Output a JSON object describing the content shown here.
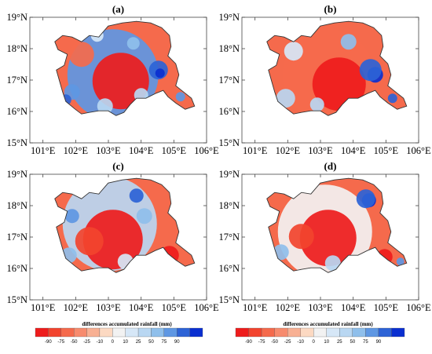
{
  "figure": {
    "panels": [
      {
        "id": "a",
        "title": "(a)"
      },
      {
        "id": "b",
        "title": "(b)"
      },
      {
        "id": "c",
        "title": "(c)"
      },
      {
        "id": "d",
        "title": "(d)"
      }
    ],
    "lat_ticks": [
      "19°N",
      "18°N",
      "17°N",
      "16°N",
      "15°N"
    ],
    "lon_ticks": [
      "101°E",
      "102°E",
      "103°E",
      "104°E",
      "105°E",
      "106°E"
    ],
    "lon_range": [
      100.6,
      106
    ],
    "lat_range": [
      15,
      19
    ],
    "colorbars": [
      {
        "title": "differences accumulated rainfall (mm)",
        "labels": [
          "-90",
          "-75",
          "-50",
          "-25",
          "-10",
          "0",
          "10",
          "25",
          "50",
          "75",
          "90"
        ]
      },
      {
        "title": "differences accumulated rainfall (mm)",
        "labels": [
          "-90",
          "-75",
          "-50",
          "-25",
          "-10",
          "0",
          "10",
          "25",
          "50",
          "75",
          "90"
        ]
      }
    ],
    "colors": [
      "#ee1c1c",
      "#f2442e",
      "#f56a4c",
      "#f78b6e",
      "#f8b093",
      "#fcd9c2",
      "#f2f2f2",
      "#d6e7f7",
      "#b9d7f2",
      "#8fbfeb",
      "#5e97e3",
      "#2d63d6",
      "#0a2fd0"
    ]
  }
}
